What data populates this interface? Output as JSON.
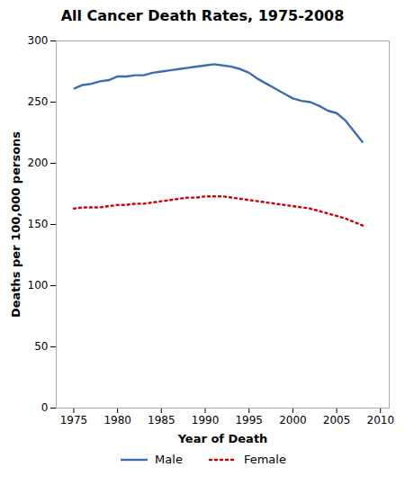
{
  "chart_data": {
    "type": "line",
    "title": "All Cancer Death Rates, 1975-2008",
    "xlabel": "Year of Death",
    "ylabel": "Deaths per 100,000 persons",
    "x": [
      1975,
      1976,
      1977,
      1978,
      1979,
      1980,
      1981,
      1982,
      1983,
      1984,
      1985,
      1986,
      1987,
      1988,
      1989,
      1990,
      1991,
      1992,
      1993,
      1994,
      1995,
      1996,
      1997,
      1998,
      1999,
      2000,
      2001,
      2002,
      2003,
      2004,
      2005,
      2006,
      2007,
      2008
    ],
    "series": [
      {
        "name": "Male",
        "color": "#3c6cb4",
        "line_style": "solid",
        "values": [
          261,
          264,
          265,
          267,
          268,
          271,
          271,
          272,
          272,
          274,
          275,
          276,
          277,
          278,
          279,
          280,
          281,
          280,
          279,
          277,
          274,
          269,
          265,
          261,
          257,
          253,
          251,
          250,
          247,
          243,
          241,
          235,
          226,
          217
        ]
      },
      {
        "name": "Female",
        "color": "#cc0000",
        "line_style": "dotted",
        "values": [
          163,
          164,
          164,
          164,
          165,
          166,
          166,
          167,
          167,
          168,
          169,
          170,
          171,
          172,
          172,
          173,
          173,
          173,
          172,
          171,
          170,
          169,
          168,
          167,
          166,
          165,
          164,
          163,
          161,
          159,
          157,
          155,
          152,
          149
        ]
      }
    ],
    "xlim": [
      1973,
      2011
    ],
    "ylim": [
      0,
      300
    ],
    "xticks": [
      1975,
      1980,
      1985,
      1990,
      1995,
      2000,
      2005,
      2010
    ],
    "yticks": [
      0,
      50,
      100,
      150,
      200,
      250,
      300
    ],
    "grid": false,
    "legend": "bottom"
  }
}
